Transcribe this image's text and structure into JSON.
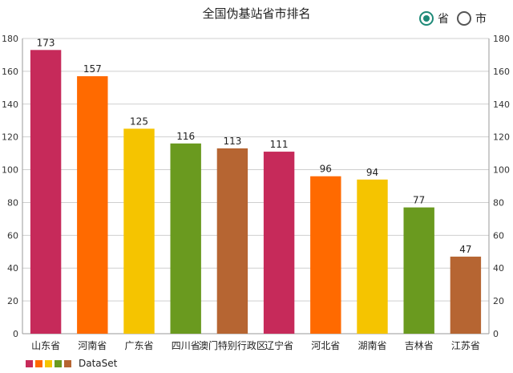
{
  "chart_data": {
    "type": "bar",
    "title": "全国伪基站省市排名",
    "categories": [
      "山东省",
      "河南省",
      "广东省",
      "四川省",
      "澳门特别行政区",
      "辽宁省",
      "河北省",
      "湖南省",
      "吉林省",
      "江苏省"
    ],
    "series": [
      {
        "name": "DataSet",
        "values": [
          173,
          157,
          125,
          116,
          113,
          111,
          96,
          94,
          77,
          47
        ]
      }
    ],
    "colors": [
      "#c62a5a",
      "#ff6a00",
      "#f5c400",
      "#6a9a1f",
      "#b66532"
    ],
    "ylim": [
      0,
      180
    ],
    "y_ticks": [
      0,
      20,
      40,
      60,
      80,
      100,
      120,
      140,
      160,
      180
    ],
    "grid": true,
    "legend": "bottom-left"
  },
  "toggle": {
    "province_label": "省",
    "city_label": "市",
    "selected": "province"
  }
}
